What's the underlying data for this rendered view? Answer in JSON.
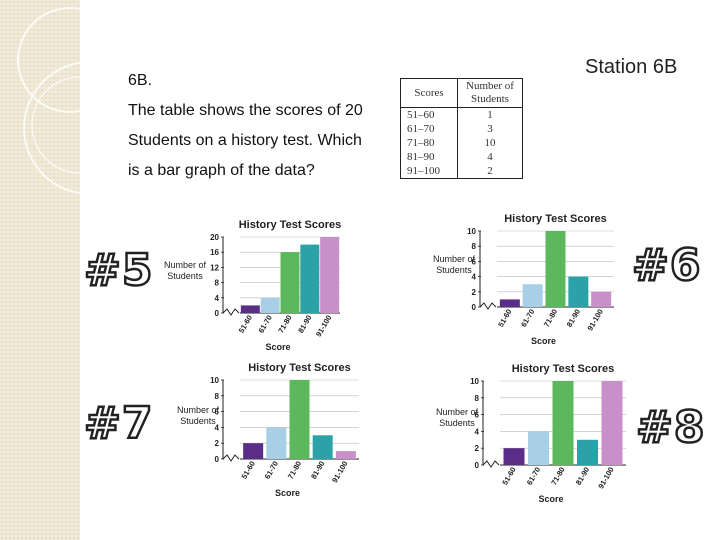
{
  "question": {
    "number": "6B.",
    "lines": [
      "The table shows the scores of 20",
      "Students on a history test. Which",
      "is a bar graph of the data?"
    ]
  },
  "station_title": "Station 6B",
  "score_table": {
    "headers": [
      "Scores",
      "Number of Students"
    ],
    "rows": [
      [
        "51–60",
        "1"
      ],
      [
        "61–70",
        "3"
      ],
      [
        "71–80",
        "10"
      ],
      [
        "81–90",
        "4"
      ],
      [
        "91–100",
        "2"
      ]
    ]
  },
  "option_labels": [
    "#5",
    "#6",
    "#7",
    "#8"
  ],
  "colors": {
    "bars": [
      "#5a2d86",
      "#a8cfe6",
      "#5cb85c",
      "#2aa2a8",
      "#c890c8"
    ],
    "side_strip": "#f1ead8"
  },
  "chart_data": [
    {
      "type": "bar",
      "title": "History Test Scores",
      "xlabel": "Score",
      "ylabel": "Number of Students",
      "categories": [
        "51-60",
        "61-70",
        "71-80",
        "81-90",
        "91-100"
      ],
      "values": [
        2,
        4,
        16,
        18,
        20
      ],
      "ylim": [
        0,
        20
      ],
      "yticks": [
        0,
        4,
        8,
        12,
        16,
        20
      ]
    },
    {
      "type": "bar",
      "title": "History Test Scores",
      "xlabel": "Score",
      "ylabel": "Number of Students",
      "categories": [
        "51-60",
        "61-70",
        "71-80",
        "81-90",
        "91-100"
      ],
      "values": [
        1,
        3,
        10,
        4,
        2
      ],
      "ylim": [
        0,
        10
      ],
      "yticks": [
        0,
        2,
        4,
        6,
        8,
        10
      ]
    },
    {
      "type": "bar",
      "title": "History Test Scores",
      "xlabel": "Score",
      "ylabel": "Number of Students",
      "categories": [
        "51-60",
        "61-70",
        "71-80",
        "81-90",
        "91-100"
      ],
      "values": [
        2,
        4,
        10,
        3,
        1
      ],
      "ylim": [
        0,
        10
      ],
      "yticks": [
        0,
        2,
        4,
        6,
        8,
        10
      ]
    },
    {
      "type": "bar",
      "title": "History Test Scores",
      "xlabel": "Score",
      "ylabel": "Number of Students",
      "categories": [
        "51-60",
        "61-70",
        "71-80",
        "81-90",
        "91-100"
      ],
      "values": [
        2,
        4,
        10,
        3,
        10
      ],
      "ylim": [
        0,
        10
      ],
      "yticks": [
        0,
        2,
        4,
        6,
        8,
        10
      ]
    }
  ]
}
